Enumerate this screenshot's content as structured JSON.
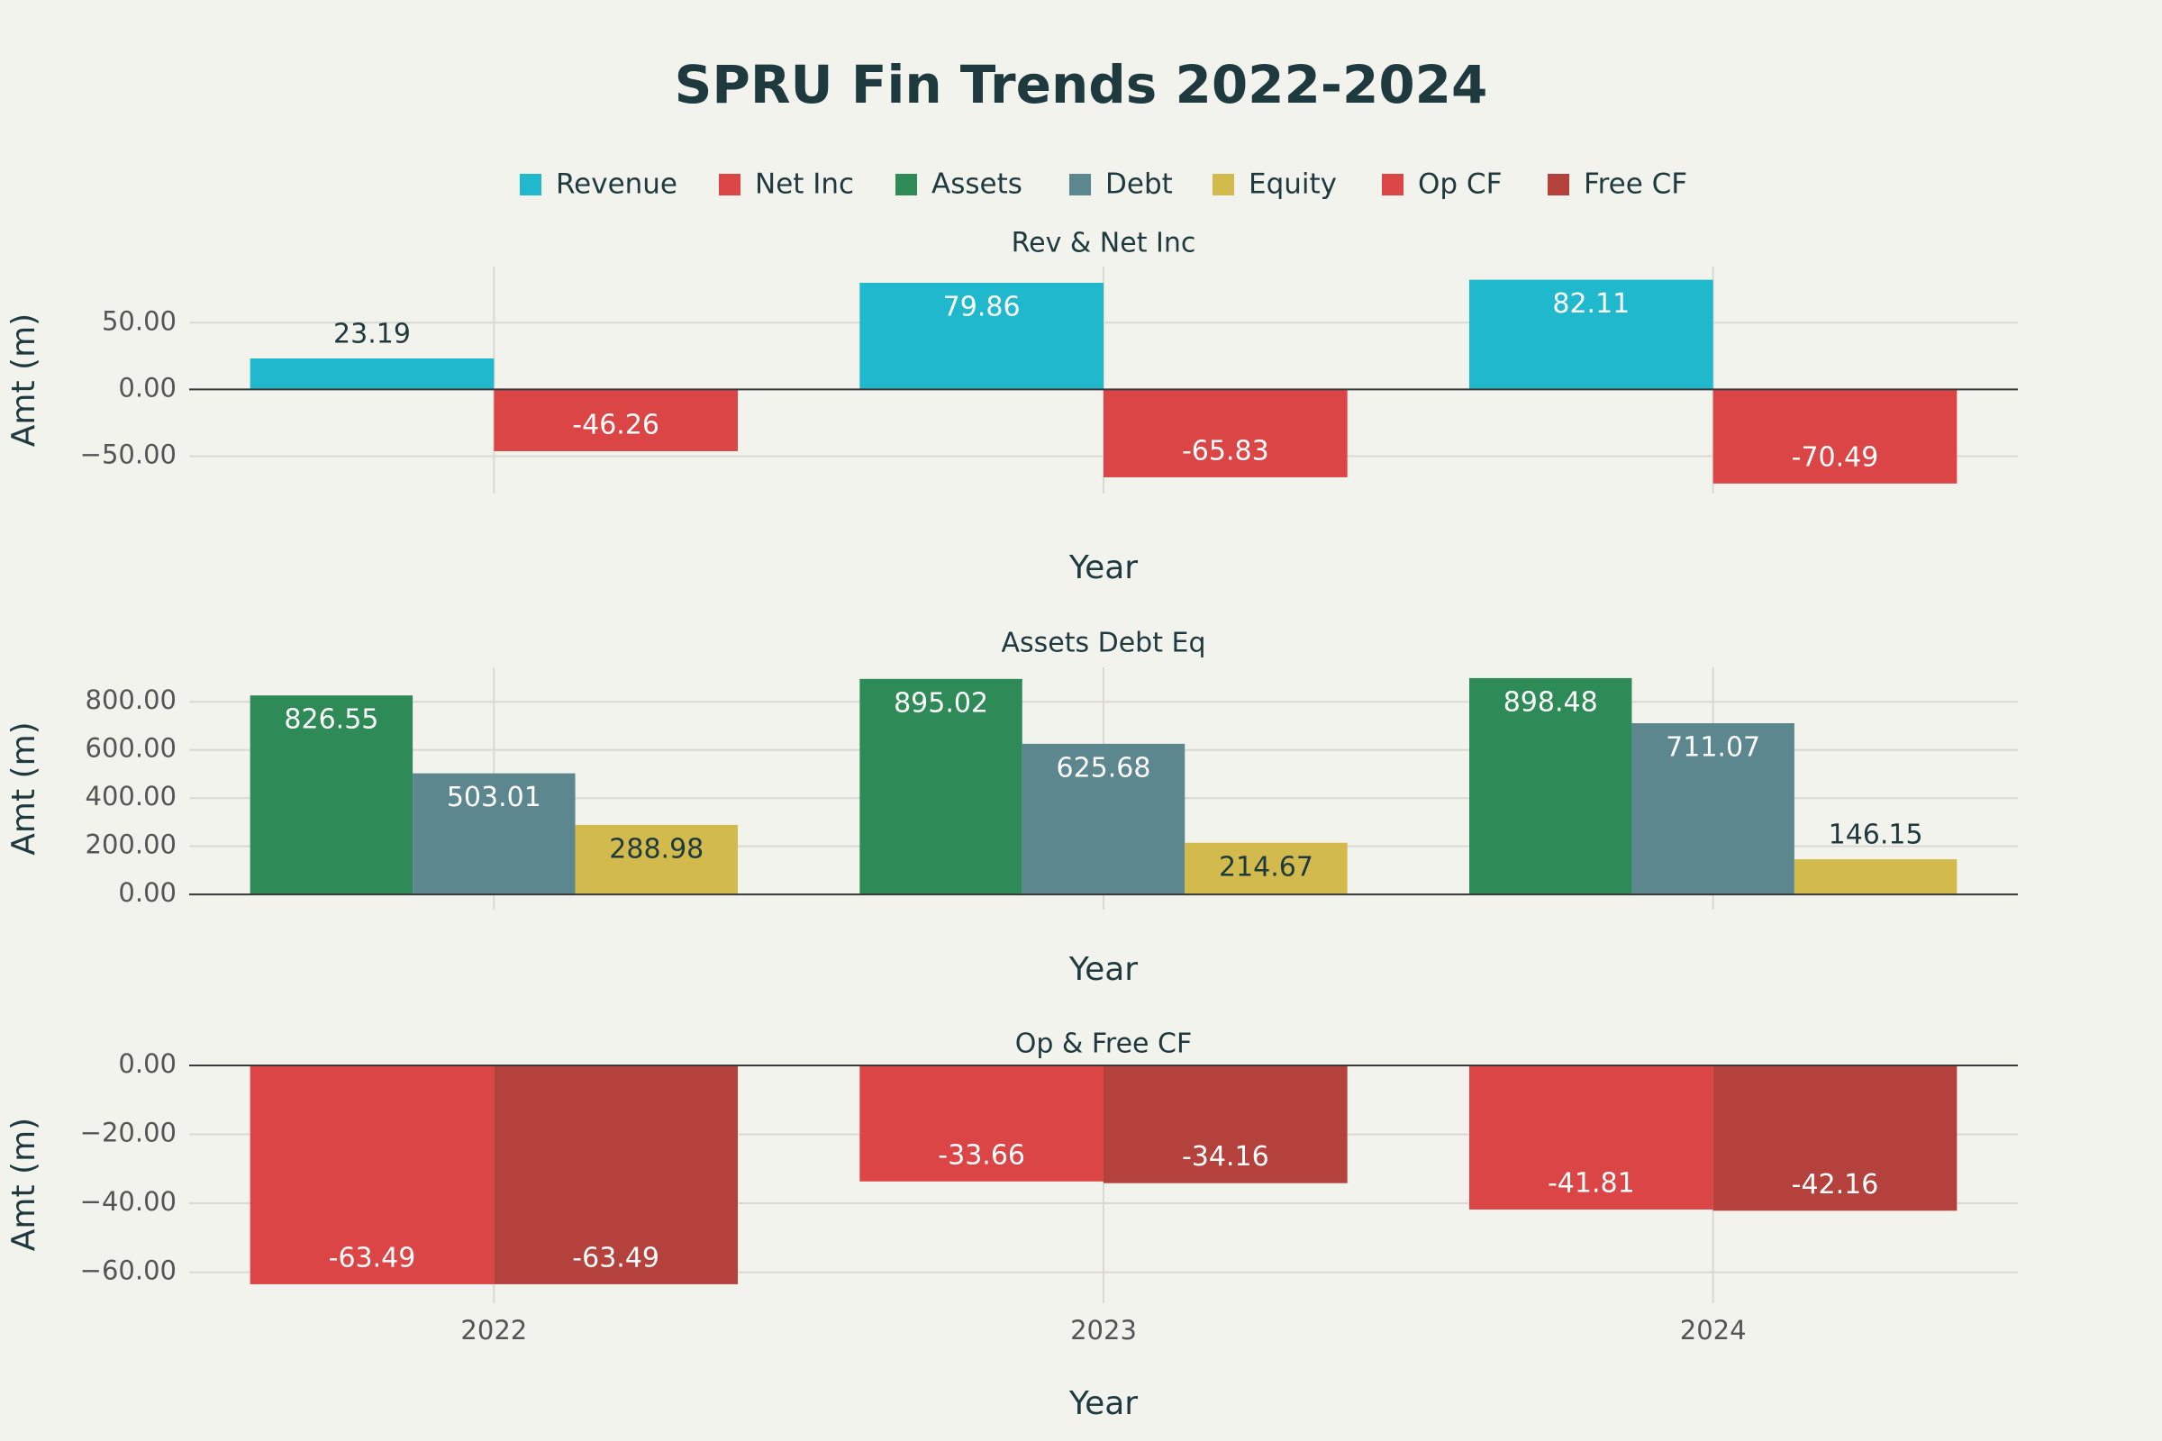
{
  "title": "SPRU Fin Trends 2022-2024",
  "chart_data": [
    {
      "type": "bar",
      "title": "Rev & Net Inc",
      "x_label": "Year",
      "y_label": "Amt (m)",
      "series": [
        {
          "name": "Revenue",
          "color": "#1FB8CD",
          "values": [
            23.19,
            79.86,
            82.11
          ]
        },
        {
          "name": "Net Inc",
          "color": "#DB4545",
          "values": [
            -46.26,
            -65.83,
            -70.49
          ]
        }
      ],
      "ylim": [
        -78,
        92
      ],
      "yticks": [
        {
          "value": -50,
          "label": "−50.00"
        },
        {
          "value": 0,
          "label": "0.00"
        },
        {
          "value": 50,
          "label": "50.00"
        }
      ],
      "grid": true
    },
    {
      "type": "bar",
      "title": "Assets Debt Eq",
      "x_label": "Year",
      "y_label": "Amt (m)",
      "series": [
        {
          "name": "Assets",
          "color": "#2E8B57",
          "values": [
            826.55,
            895.02,
            898.48
          ]
        },
        {
          "name": "Debt",
          "color": "#5D878F",
          "values": [
            503.01,
            625.68,
            711.07
          ]
        },
        {
          "name": "Equity",
          "color": "#D2BA4C",
          "values": [
            288.98,
            214.67,
            146.15
          ]
        }
      ],
      "ylim": [
        -63,
        943
      ],
      "yticks": [
        {
          "value": 0,
          "label": "0.00"
        },
        {
          "value": 200,
          "label": "200.00"
        },
        {
          "value": 400,
          "label": "400.00"
        },
        {
          "value": 600,
          "label": "600.00"
        },
        {
          "value": 800,
          "label": "800.00"
        }
      ],
      "grid": true
    },
    {
      "type": "bar",
      "title": "Op & Free CF",
      "x_label": "Year",
      "y_label": "Amt (m)",
      "categories": [
        "2022",
        "2023",
        "2024"
      ],
      "series": [
        {
          "name": "Op CF",
          "color": "#DB4545",
          "values": [
            -63.49,
            -33.66,
            -41.81
          ]
        },
        {
          "name": "Free CF",
          "color": "#B4413C",
          "values": [
            -63.49,
            -34.16,
            -42.16
          ]
        }
      ],
      "ylim": [
        -69,
        0
      ],
      "yticks": [
        {
          "value": -60,
          "label": "−60.00"
        },
        {
          "value": -40,
          "label": "−40.00"
        },
        {
          "value": -20,
          "label": "−20.00"
        },
        {
          "value": 0,
          "label": "0.00"
        }
      ],
      "grid": true
    }
  ]
}
